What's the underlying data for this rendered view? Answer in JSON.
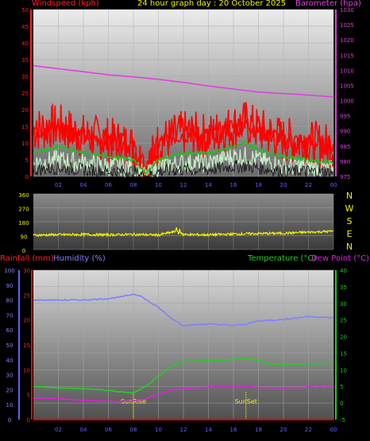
{
  "header": {
    "left_label": "Windspeed (kph)",
    "center_title": "24 hour graph day : 20 October 2025",
    "right_label": "Barometer (hpa)"
  },
  "chart_data": [
    {
      "type": "line",
      "title": "24 hour graph day : 20 October 2025",
      "ylabel": "Windspeed (kph)",
      "y2label": "Barometer (hpa)",
      "xtick_labels": [
        "02",
        "04",
        "06",
        "08",
        "10",
        "12",
        "14",
        "16",
        "18",
        "20",
        "22",
        "00"
      ],
      "ylim": [
        0,
        50
      ],
      "y2lim": [
        975,
        1030
      ],
      "yticks": [
        0,
        5,
        10,
        15,
        20,
        25,
        30,
        35,
        40,
        45,
        50
      ],
      "y2ticks": [
        975,
        980,
        985,
        990,
        995,
        1000,
        1005,
        1010,
        1015,
        1020,
        1025,
        1030
      ],
      "grid": true,
      "series": [
        {
          "name": "Barometer (hpa)",
          "axis": "right",
          "color": "#e040e0",
          "x": [
            0,
            2,
            4,
            6,
            8,
            10,
            12,
            14,
            16,
            18,
            20,
            22,
            24
          ],
          "values": [
            1011.5,
            1010.5,
            1009.5,
            1008.5,
            1007.8,
            1007.0,
            1006.0,
            1004.8,
            1003.8,
            1002.8,
            1002.3,
            1001.8,
            1001.2
          ]
        },
        {
          "axis": "left",
          "color": "#ff0000",
          "style": "gust",
          "x": [
            0,
            2,
            4,
            6,
            8,
            9,
            10,
            12,
            14,
            16,
            17,
            18,
            20,
            22,
            24
          ],
          "values": [
            14,
            15,
            12,
            11,
            9,
            2,
            10,
            13,
            12,
            15,
            16,
            14,
            11,
            10,
            9
          ]
        },
        {
          "axis": "left",
          "color": "#20c020",
          "x": [
            0,
            2,
            4,
            6,
            8,
            9,
            10,
            12,
            14,
            16,
            17,
            18,
            20,
            22,
            24
          ],
          "values": [
            7,
            9,
            7,
            6,
            5,
            1,
            5,
            7,
            7,
            9,
            10,
            8,
            6,
            5,
            4
          ]
        },
        {
          "axis": "left",
          "color": "#c8f0c8",
          "style": "mean",
          "x": [
            0,
            2,
            4,
            6,
            8,
            9,
            10,
            12,
            14,
            16,
            17,
            18,
            20,
            22,
            24
          ],
          "values": [
            4,
            5,
            4,
            3,
            3,
            0,
            3,
            4,
            4,
            6,
            6,
            5,
            3,
            3,
            2
          ]
        }
      ]
    },
    {
      "type": "line",
      "ylabel_ticks": [
        "360",
        "270",
        "180",
        "90",
        "0"
      ],
      "compass_labels": [
        "N",
        "W",
        "S",
        "E",
        "N"
      ],
      "ylim": [
        0,
        360
      ],
      "yticks": [
        0,
        90,
        180,
        270,
        360
      ],
      "series": [
        {
          "color": "#f0f000",
          "x": [
            0,
            2,
            4,
            6,
            8,
            10,
            11.5,
            12,
            14,
            16,
            18,
            20,
            22,
            24
          ],
          "values": [
            93,
            96,
            97,
            95,
            98,
            94,
            118,
            97,
            95,
            100,
            103,
            105,
            112,
            118
          ]
        }
      ]
    },
    {
      "type": "line",
      "labels": {
        "rainfall": "Rainfall (mm)",
        "humidity": "Humidity (%)",
        "temperature": "Temperature (°C)",
        "dewpoint": "Dew Point (°C)"
      },
      "xtick_labels": [
        "02",
        "04",
        "06",
        "08",
        "10",
        "12",
        "14",
        "16",
        "18",
        "20",
        "22",
        "00"
      ],
      "annotations": [
        {
          "text": "SunRise",
          "x": 8
        },
        {
          "text": "SunSet",
          "x": 17
        }
      ],
      "humidity_axis": {
        "ylim": [
          0,
          100
        ],
        "yticks": [
          0,
          10,
          20,
          30,
          40,
          50,
          60,
          70,
          80,
          90,
          100
        ]
      },
      "rain_axis": {
        "ylim": [
          0,
          30
        ],
        "yticks": [
          0,
          5,
          10,
          15,
          20,
          25,
          30
        ]
      },
      "temp_axis": {
        "ylim": [
          -5,
          40
        ],
        "yticks": [
          -5,
          0,
          5,
          10,
          15,
          20,
          25,
          30,
          35,
          40
        ]
      },
      "series": [
        {
          "name": "Humidity (%)",
          "axis": "humidity",
          "color": "#8080ff",
          "x": [
            0,
            2,
            4,
            6,
            7,
            8,
            8.5,
            10,
            11,
            12,
            14,
            16,
            17,
            18,
            20,
            22,
            24
          ],
          "values": [
            80,
            80,
            80,
            81,
            82,
            84,
            83,
            75,
            68,
            63,
            64,
            63,
            64,
            66,
            67,
            69,
            68
          ]
        },
        {
          "name": "Temperature (°C)",
          "axis": "temp",
          "color": "#20d020",
          "x": [
            0,
            2,
            4,
            6,
            7,
            8,
            9,
            10,
            11,
            12,
            14,
            16,
            17,
            18,
            19,
            20,
            22,
            24
          ],
          "values": [
            5.0,
            4.5,
            4.3,
            3.8,
            3.3,
            3.0,
            5.0,
            8.0,
            11.0,
            12.5,
            12.8,
            13.0,
            13.5,
            12.8,
            11.8,
            11.7,
            11.8,
            12.0
          ]
        },
        {
          "name": "Dew Point (°C)",
          "axis": "temp",
          "color": "#e020e0",
          "x": [
            0,
            2,
            4,
            6,
            7,
            8,
            9,
            10,
            11,
            12,
            14,
            16,
            17,
            18,
            20,
            22,
            24
          ],
          "values": [
            1.5,
            1.3,
            0.8,
            0.5,
            0.4,
            0.6,
            1.3,
            2.5,
            3.8,
            4.3,
            4.8,
            5.1,
            5.0,
            4.7,
            4.5,
            4.8,
            4.8
          ]
        },
        {
          "name": "Rainfall (mm)",
          "axis": "rain",
          "color": "#ff0000",
          "x": [
            0,
            24
          ],
          "values": [
            0,
            0
          ]
        }
      ]
    }
  ],
  "colors": {
    "wind_label": "#ff2020",
    "title": "#f0f000",
    "baro_label": "#e040e0",
    "rain_label": "#ff2020",
    "humidity_label": "#8080ff",
    "temp_label": "#20d020",
    "dew_label": "#e020e0",
    "compass": "#f0f000"
  }
}
